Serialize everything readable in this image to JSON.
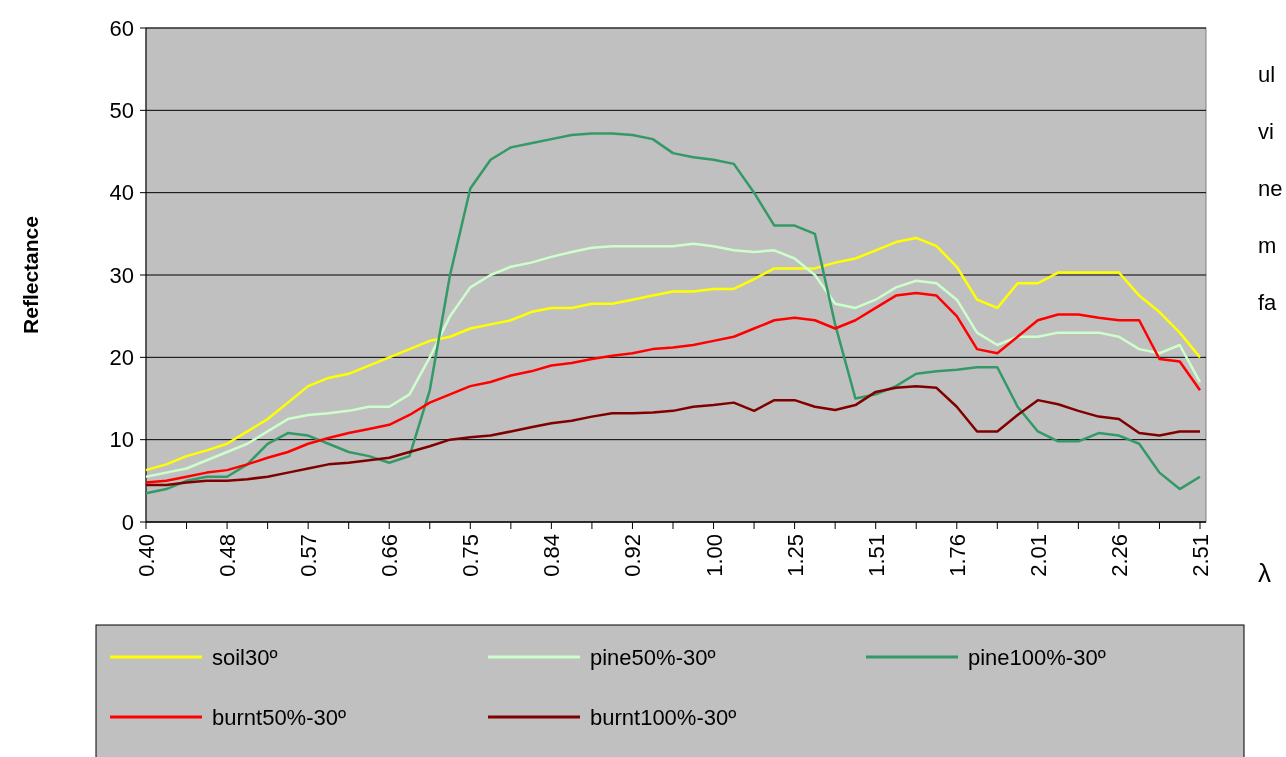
{
  "chart_data": {
    "type": "line",
    "ylabel": "Reflectance",
    "xlabel": "λ",
    "categories": [
      "0.40",
      null,
      null,
      null,
      "0.48",
      null,
      null,
      null,
      "0.57",
      null,
      null,
      null,
      "0.66",
      null,
      null,
      null,
      "0.75",
      null,
      null,
      null,
      "0.84",
      null,
      null,
      null,
      "0.92",
      null,
      null,
      null,
      "1.00",
      null,
      null,
      null,
      "1.25",
      null,
      null,
      null,
      "1.51",
      null,
      null,
      null,
      "1.76",
      null,
      null,
      null,
      "2.01",
      null,
      null,
      null,
      "2.26",
      null,
      null,
      null,
      "2.51"
    ],
    "ylim": [
      0,
      60
    ],
    "yticks": [
      0,
      10,
      20,
      30,
      40,
      50,
      60
    ],
    "grid": "y",
    "legend": "bottom",
    "marker": "none",
    "line_style": "solid",
    "series": [
      {
        "name": "soil30º",
        "color": "#ffff00",
        "values": [
          6.3,
          7,
          8,
          8.7,
          9.5,
          11,
          12.5,
          14.5,
          16.5,
          17.5,
          18,
          19,
          20,
          21,
          22,
          22.5,
          23.5,
          24,
          24.5,
          25.5,
          26,
          26,
          26.5,
          26.5,
          27,
          27.5,
          28,
          28,
          28.3,
          28.3,
          29.5,
          30.8,
          30.8,
          30.8,
          31.5,
          32,
          33,
          34,
          34.5,
          33.5,
          31,
          27,
          26,
          29,
          29,
          30.3,
          30.3,
          30.3,
          30.3,
          27.5,
          25.5,
          23,
          20
        ]
      },
      {
        "name": "pine50%-30º",
        "color": "#ccffcc",
        "values": [
          5.5,
          6,
          6.5,
          7.5,
          8.5,
          9.5,
          11,
          12.5,
          13,
          13.2,
          13.5,
          14,
          14,
          15.5,
          20,
          25,
          28.5,
          30,
          31,
          31.5,
          32.2,
          32.8,
          33.3,
          33.5,
          33.5,
          33.5,
          33.5,
          33.8,
          33.5,
          33,
          32.8,
          33,
          32,
          30,
          26.5,
          26,
          27,
          28.5,
          29.3,
          29,
          27,
          23,
          21.5,
          22.5,
          22.5,
          23,
          23,
          23,
          22.5,
          21,
          20.5,
          21.5,
          17
        ]
      },
      {
        "name": "pine100%-30º",
        "color": "#339966",
        "values": [
          3.5,
          4,
          5,
          5.5,
          5.5,
          7,
          9.5,
          10.8,
          10.5,
          9.5,
          8.5,
          8,
          7.2,
          8,
          16,
          30,
          40.5,
          44,
          45.5,
          46,
          46.5,
          47,
          47.2,
          47.2,
          47,
          46.5,
          44.8,
          44.3,
          44,
          43.5,
          40,
          36,
          36,
          35,
          24,
          15,
          15.5,
          16.5,
          18,
          18.3,
          18.5,
          18.8,
          18.8,
          14,
          11,
          9.8,
          9.8,
          10.8,
          10.5,
          9.5,
          6,
          4,
          5.5
        ]
      },
      {
        "name": "burnt50%-30º",
        "color": "#ff0000",
        "values": [
          4.8,
          5,
          5.5,
          6,
          6.3,
          7,
          7.8,
          8.5,
          9.5,
          10.2,
          10.8,
          11.3,
          11.8,
          13,
          14.5,
          15.5,
          16.5,
          17,
          17.8,
          18.3,
          19,
          19.3,
          19.8,
          20.2,
          20.5,
          21,
          21.2,
          21.5,
          22,
          22.5,
          23.5,
          24.5,
          24.8,
          24.5,
          23.5,
          24.5,
          26,
          27.5,
          27.8,
          27.5,
          25,
          21,
          20.5,
          22.5,
          24.5,
          25.2,
          25.2,
          24.8,
          24.5,
          24.5,
          19.8,
          19.5,
          16
        ]
      },
      {
        "name": "burnt100%-30º",
        "color": "#800000",
        "values": [
          4.5,
          4.5,
          4.8,
          5,
          5,
          5.2,
          5.5,
          6,
          6.5,
          7,
          7.2,
          7.5,
          7.8,
          8.5,
          9.2,
          10,
          10.3,
          10.5,
          11,
          11.5,
          12,
          12.3,
          12.8,
          13.2,
          13.2,
          13.3,
          13.5,
          14,
          14.2,
          14.5,
          13.5,
          14.8,
          14.8,
          14,
          13.6,
          14.2,
          15.8,
          16.3,
          16.5,
          16.3,
          14,
          11,
          11,
          13,
          14.8,
          14.3,
          13.5,
          12.8,
          12.5,
          10.8,
          10.5,
          11,
          11
        ]
      }
    ],
    "annotations": [
      "ul",
      "vi",
      "ne",
      "m",
      "fa"
    ]
  }
}
